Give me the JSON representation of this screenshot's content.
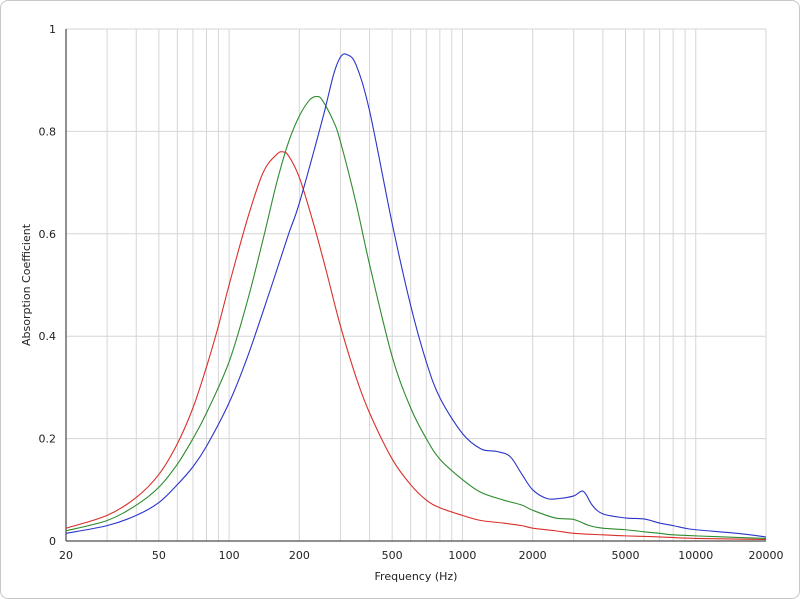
{
  "chart_data": {
    "type": "line",
    "xlabel": "Frequency (Hz)",
    "ylabel": "Absorption Coefficient",
    "x_scale": "log",
    "xlim": [
      20,
      20000
    ],
    "ylim": [
      0,
      1
    ],
    "x_tick_values": [
      20,
      50,
      100,
      200,
      500,
      1000,
      2000,
      5000,
      10000,
      20000
    ],
    "x_tick_labels": [
      "20",
      "50",
      "100",
      "200",
      "500",
      "1000",
      "2000",
      "5000",
      "10000",
      "20000"
    ],
    "y_tick_values": [
      0,
      0.2,
      0.4,
      0.6,
      0.8,
      1
    ],
    "y_tick_labels": [
      "0",
      "0.2",
      "0.4",
      "0.6",
      "0.8",
      "1"
    ],
    "grid": true,
    "series": [
      {
        "color": "#d9302a",
        "x": [
          20,
          30,
          40,
          50,
          60,
          70,
          80,
          90,
          100,
          120,
          140,
          160,
          170,
          180,
          200,
          230,
          260,
          300,
          350,
          400,
          500,
          600,
          700,
          800,
          1000,
          1200,
          1500,
          1800,
          2000,
          2500,
          3000,
          4000,
          5000,
          7000,
          10000,
          20000
        ],
        "y": [
          0.025,
          0.05,
          0.085,
          0.13,
          0.19,
          0.26,
          0.34,
          0.42,
          0.5,
          0.63,
          0.72,
          0.755,
          0.76,
          0.752,
          0.71,
          0.62,
          0.53,
          0.42,
          0.32,
          0.25,
          0.16,
          0.11,
          0.08,
          0.065,
          0.05,
          0.04,
          0.035,
          0.03,
          0.025,
          0.02,
          0.015,
          0.012,
          0.01,
          0.008,
          0.005,
          0.003
        ]
      },
      {
        "color": "#2e8b2e",
        "x": [
          20,
          30,
          40,
          50,
          60,
          70,
          80,
          100,
          120,
          140,
          160,
          180,
          200,
          220,
          235,
          250,
          280,
          300,
          350,
          400,
          500,
          600,
          700,
          800,
          1000,
          1200,
          1500,
          1800,
          2000,
          2500,
          3000,
          3500,
          4000,
          5000,
          6000,
          7000,
          8000,
          10000,
          15000,
          20000
        ],
        "y": [
          0.02,
          0.04,
          0.07,
          0.105,
          0.15,
          0.2,
          0.25,
          0.35,
          0.47,
          0.59,
          0.7,
          0.78,
          0.83,
          0.86,
          0.868,
          0.862,
          0.82,
          0.78,
          0.66,
          0.54,
          0.36,
          0.26,
          0.2,
          0.16,
          0.12,
          0.095,
          0.08,
          0.07,
          0.06,
          0.045,
          0.042,
          0.03,
          0.025,
          0.022,
          0.018,
          0.015,
          0.012,
          0.01,
          0.007,
          0.005
        ]
      },
      {
        "color": "#2a35c9",
        "x": [
          20,
          30,
          40,
          50,
          60,
          70,
          80,
          100,
          120,
          150,
          180,
          200,
          250,
          280,
          300,
          320,
          350,
          400,
          500,
          600,
          700,
          800,
          1000,
          1200,
          1400,
          1600,
          1800,
          2000,
          2300,
          2600,
          3000,
          3300,
          3600,
          4000,
          5000,
          6000,
          7000,
          8000,
          9000,
          10000,
          15000,
          20000
        ],
        "y": [
          0.015,
          0.03,
          0.05,
          0.075,
          0.11,
          0.145,
          0.185,
          0.27,
          0.36,
          0.49,
          0.6,
          0.66,
          0.82,
          0.91,
          0.945,
          0.95,
          0.93,
          0.84,
          0.62,
          0.46,
          0.35,
          0.28,
          0.21,
          0.18,
          0.175,
          0.165,
          0.13,
          0.1,
          0.083,
          0.083,
          0.088,
          0.097,
          0.07,
          0.053,
          0.045,
          0.043,
          0.035,
          0.03,
          0.025,
          0.022,
          0.015,
          0.008
        ]
      }
    ]
  }
}
